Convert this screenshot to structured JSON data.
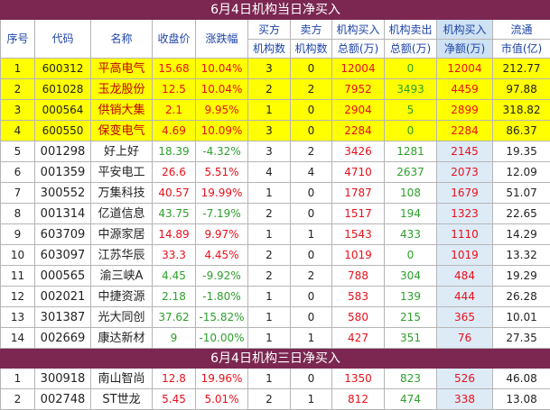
{
  "table1": {
    "title": "6月4日机构当日净买入",
    "headers": {
      "idx": "序号",
      "code": "代码",
      "name": "名称",
      "close": "收盘价",
      "change": "涨跌幅",
      "buy_top": "买方",
      "buy_bottom": "机构数",
      "sell_top": "卖方",
      "sell_bottom": "机构数",
      "buyamt_top": "机构买入",
      "buyamt_bottom": "总额(万)",
      "sellamt_top": "机构卖出",
      "sellamt_bottom": "总额(万)",
      "net_top": "机构买入",
      "net_bottom": "净额(万)",
      "cap_top": "流通",
      "cap_bottom": "市值(亿)"
    },
    "rows": [
      {
        "idx": "1",
        "code": "600312",
        "name": "平高电气",
        "close": "15.68",
        "change": "10.04%",
        "buy": "3",
        "sell": "0",
        "buyamt": "12004",
        "sellamt": "0",
        "net": "12004",
        "cap": "212.77",
        "hl": true,
        "up": true
      },
      {
        "idx": "2",
        "code": "601028",
        "name": "玉龙股份",
        "close": "12.5",
        "change": "10.04%",
        "buy": "2",
        "sell": "2",
        "buyamt": "7952",
        "sellamt": "3493",
        "net": "4459",
        "cap": "97.88",
        "hl": true,
        "up": true
      },
      {
        "idx": "3",
        "code": "000564",
        "name": "供销大集",
        "close": "2.1",
        "change": "9.95%",
        "buy": "1",
        "sell": "0",
        "buyamt": "2904",
        "sellamt": "5",
        "net": "2899",
        "cap": "318.82",
        "hl": true,
        "up": true
      },
      {
        "idx": "4",
        "code": "600550",
        "name": "保变电气",
        "close": "4.69",
        "change": "10.09%",
        "buy": "3",
        "sell": "0",
        "buyamt": "2284",
        "sellamt": "0",
        "net": "2284",
        "cap": "86.37",
        "hl": true,
        "up": true
      },
      {
        "idx": "5",
        "code": "001298",
        "name": "好上好",
        "close": "18.39",
        "change": "-4.32%",
        "buy": "3",
        "sell": "2",
        "buyamt": "3426",
        "sellamt": "1281",
        "net": "2145",
        "cap": "19.35",
        "hl": false,
        "up": false
      },
      {
        "idx": "6",
        "code": "001359",
        "name": "平安电工",
        "close": "26.6",
        "change": "5.51%",
        "buy": "4",
        "sell": "4",
        "buyamt": "4710",
        "sellamt": "2637",
        "net": "2073",
        "cap": "12.09",
        "hl": false,
        "up": true
      },
      {
        "idx": "7",
        "code": "300552",
        "name": "万集科技",
        "close": "40.57",
        "change": "19.99%",
        "buy": "1",
        "sell": "0",
        "buyamt": "1787",
        "sellamt": "108",
        "net": "1679",
        "cap": "51.07",
        "hl": false,
        "up": true
      },
      {
        "idx": "8",
        "code": "001314",
        "name": "亿道信息",
        "close": "43.75",
        "change": "-7.19%",
        "buy": "2",
        "sell": "0",
        "buyamt": "1517",
        "sellamt": "194",
        "net": "1323",
        "cap": "22.65",
        "hl": false,
        "up": false
      },
      {
        "idx": "9",
        "code": "603709",
        "name": "中源家居",
        "close": "14.89",
        "change": "9.97%",
        "buy": "1",
        "sell": "1",
        "buyamt": "1543",
        "sellamt": "433",
        "net": "1110",
        "cap": "14.29",
        "hl": false,
        "up": true
      },
      {
        "idx": "10",
        "code": "603097",
        "name": "江苏华辰",
        "close": "33.3",
        "change": "4.45%",
        "buy": "2",
        "sell": "0",
        "buyamt": "1019",
        "sellamt": "0",
        "net": "1019",
        "cap": "13.32",
        "hl": false,
        "up": true
      },
      {
        "idx": "11",
        "code": "000565",
        "name": "渝三峡A",
        "close": "4.45",
        "change": "-9.92%",
        "buy": "2",
        "sell": "2",
        "buyamt": "788",
        "sellamt": "304",
        "net": "484",
        "cap": "19.29",
        "hl": false,
        "up": false
      },
      {
        "idx": "12",
        "code": "002021",
        "name": "中捷资源",
        "close": "2.18",
        "change": "-1.80%",
        "buy": "1",
        "sell": "0",
        "buyamt": "583",
        "sellamt": "139",
        "net": "444",
        "cap": "26.28",
        "hl": false,
        "up": false
      },
      {
        "idx": "13",
        "code": "301387",
        "name": "光大同创",
        "close": "37.62",
        "change": "-15.82%",
        "buy": "1",
        "sell": "0",
        "buyamt": "580",
        "sellamt": "215",
        "net": "365",
        "cap": "10.01",
        "hl": false,
        "up": false
      },
      {
        "idx": "14",
        "code": "002669",
        "name": "康达新材",
        "close": "9",
        "change": "-10.00%",
        "buy": "1",
        "sell": "1",
        "buyamt": "427",
        "sellamt": "351",
        "net": "76",
        "cap": "27.35",
        "hl": false,
        "up": false
      }
    ]
  },
  "table2": {
    "title": "6月4日机构三日净买入",
    "rows": [
      {
        "idx": "1",
        "code": "300918",
        "name": "南山智尚",
        "close": "12.8",
        "change": "19.96%",
        "buy": "1",
        "sell": "0",
        "buyamt": "1350",
        "sellamt": "823",
        "net": "526",
        "cap": "46.08",
        "hl": false,
        "up": true
      },
      {
        "idx": "2",
        "code": "002748",
        "name": "ST世龙",
        "close": "5.45",
        "change": "5.01%",
        "buy": "2",
        "sell": "1",
        "buyamt": "812",
        "sellamt": "474",
        "net": "338",
        "cap": "13.08",
        "hl": false,
        "up": true
      }
    ]
  },
  "colors": {
    "title_bg": "#7b2752",
    "header_text": "#1c43a8",
    "highlight_row": "#ffff00",
    "net_column_bg": "#ddebf7",
    "up": "#e8101a",
    "down": "#2ca02c"
  }
}
